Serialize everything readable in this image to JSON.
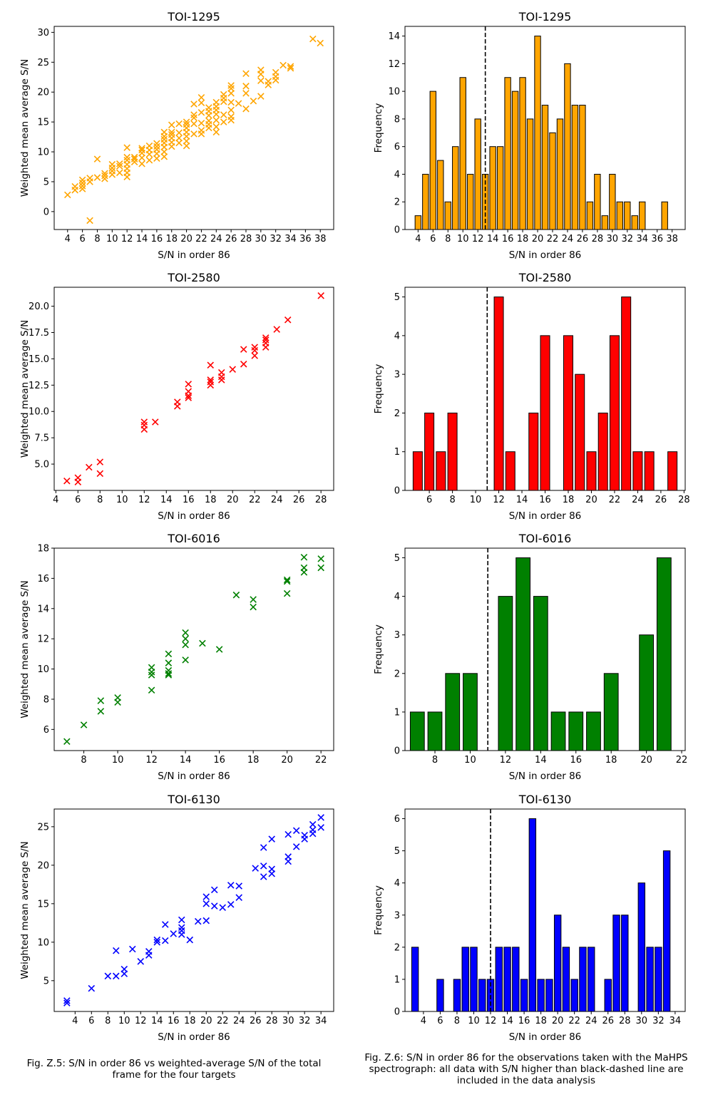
{
  "chart_data": [
    {
      "type": "scatter",
      "title": "TOI-1295",
      "xlabel": "S/N in order 86",
      "ylabel": "Weighted mean average S/N",
      "color": "#ffa500",
      "marker": "x",
      "xlim": [
        2.2,
        39.8
      ],
      "ylim": [
        -3,
        31
      ],
      "xticks": [
        4,
        6,
        8,
        10,
        12,
        14,
        16,
        18,
        20,
        22,
        24,
        26,
        28,
        30,
        32,
        34,
        36,
        38
      ],
      "yticks": [
        0,
        5,
        10,
        15,
        20,
        25,
        30
      ],
      "points": [
        [
          4,
          2.8
        ],
        [
          5,
          3.6
        ],
        [
          5,
          4.2
        ],
        [
          6,
          3.8
        ],
        [
          6,
          4.3
        ],
        [
          6,
          4.8
        ],
        [
          6,
          5.3
        ],
        [
          7,
          5.0
        ],
        [
          7,
          5.6
        ],
        [
          7,
          -1.5
        ],
        [
          8,
          5.7
        ],
        [
          8,
          8.8
        ],
        [
          9,
          5.5
        ],
        [
          9,
          6.0
        ],
        [
          9,
          6.4
        ],
        [
          10,
          6.2
        ],
        [
          10,
          6.8
        ],
        [
          10,
          7.3
        ],
        [
          10,
          7.9
        ],
        [
          11,
          6.5
        ],
        [
          11,
          7.6
        ],
        [
          11,
          8.0
        ],
        [
          12,
          5.8
        ],
        [
          12,
          6.5
        ],
        [
          12,
          7.2
        ],
        [
          12,
          7.9
        ],
        [
          12,
          8.6
        ],
        [
          12,
          9.1
        ],
        [
          12,
          10.7
        ],
        [
          13,
          8.3
        ],
        [
          13,
          8.8
        ],
        [
          13,
          9.1
        ],
        [
          14,
          8.0
        ],
        [
          14,
          9.0
        ],
        [
          14,
          9.8
        ],
        [
          14,
          10.3
        ],
        [
          14,
          10.6
        ],
        [
          15,
          8.6
        ],
        [
          15,
          9.6
        ],
        [
          15,
          10.3
        ],
        [
          15,
          11.0
        ],
        [
          16,
          8.9
        ],
        [
          16,
          9.7
        ],
        [
          16,
          10.4
        ],
        [
          16,
          10.9
        ],
        [
          16,
          11.4
        ],
        [
          17,
          9.2
        ],
        [
          17,
          10.0
        ],
        [
          17,
          10.8
        ],
        [
          17,
          11.5
        ],
        [
          17,
          12.1
        ],
        [
          17,
          12.6
        ],
        [
          17,
          13.3
        ],
        [
          18,
          10.9
        ],
        [
          18,
          11.6
        ],
        [
          18,
          12.3
        ],
        [
          18,
          12.9
        ],
        [
          18,
          13.3
        ],
        [
          18,
          14.5
        ],
        [
          19,
          11.5
        ],
        [
          19,
          12.3
        ],
        [
          19,
          13.2
        ],
        [
          19,
          14.7
        ],
        [
          20,
          11.0
        ],
        [
          20,
          11.8
        ],
        [
          20,
          12.6
        ],
        [
          20,
          13.3
        ],
        [
          20,
          14.0
        ],
        [
          20,
          14.6
        ],
        [
          20,
          15.0
        ],
        [
          21,
          13.0
        ],
        [
          21,
          14.7
        ],
        [
          21,
          15.7
        ],
        [
          21,
          16.2
        ],
        [
          21,
          18.0
        ],
        [
          22,
          13.0
        ],
        [
          22,
          13.6
        ],
        [
          22,
          14.8
        ],
        [
          22,
          16.6
        ],
        [
          22,
          18.2
        ],
        [
          22,
          19.1
        ],
        [
          23,
          14.0
        ],
        [
          23,
          14.6
        ],
        [
          23,
          15.2
        ],
        [
          23,
          16.1
        ],
        [
          23,
          16.8
        ],
        [
          23,
          17.4
        ],
        [
          24,
          13.3
        ],
        [
          24,
          14.2
        ],
        [
          24,
          15.3
        ],
        [
          24,
          16.3
        ],
        [
          24,
          17.0
        ],
        [
          24,
          17.6
        ],
        [
          24,
          18.3
        ],
        [
          25,
          15.0
        ],
        [
          25,
          16.2
        ],
        [
          25,
          18.4
        ],
        [
          25,
          19.0
        ],
        [
          25,
          19.6
        ],
        [
          26,
          15.3
        ],
        [
          26,
          15.9
        ],
        [
          26,
          17.0
        ],
        [
          26,
          18.3
        ],
        [
          26,
          19.8
        ],
        [
          26,
          20.6
        ],
        [
          26,
          21.1
        ],
        [
          27,
          18.1
        ],
        [
          28,
          17.2
        ],
        [
          28,
          19.8
        ],
        [
          28,
          21.0
        ],
        [
          28,
          23.1
        ],
        [
          29,
          18.5
        ],
        [
          30,
          19.3
        ],
        [
          30,
          21.9
        ],
        [
          30,
          23.0
        ],
        [
          30,
          23.7
        ],
        [
          31,
          21.2
        ],
        [
          31,
          21.8
        ],
        [
          32,
          22.0
        ],
        [
          32,
          22.6
        ],
        [
          32,
          23.3
        ],
        [
          33,
          24.5
        ],
        [
          34,
          24.0
        ],
        [
          34,
          24.3
        ],
        [
          37,
          28.9
        ],
        [
          38,
          28.2
        ]
      ]
    },
    {
      "type": "bar",
      "title": "TOI-1295",
      "xlabel": "S/N in order 86",
      "ylabel": "Frequency",
      "color": "#ffa500",
      "xlim": [
        2.25,
        39.75
      ],
      "ylim": [
        0,
        14.7
      ],
      "xticks": [
        4,
        6,
        8,
        10,
        12,
        14,
        16,
        18,
        20,
        22,
        24,
        26,
        28,
        30,
        32,
        34,
        36,
        38
      ],
      "yticks": [
        0,
        2,
        4,
        6,
        8,
        10,
        12,
        14
      ],
      "threshold": 13,
      "x": [
        4,
        5,
        6,
        7,
        8,
        9,
        10,
        11,
        12,
        13,
        14,
        15,
        16,
        17,
        18,
        19,
        20,
        21,
        22,
        23,
        24,
        25,
        26,
        27,
        28,
        29,
        30,
        31,
        32,
        33,
        34,
        37
      ],
      "values": [
        1,
        4,
        10,
        5,
        2,
        6,
        11,
        4,
        8,
        4,
        6,
        6,
        11,
        10,
        11,
        8,
        14,
        9,
        7,
        8,
        12,
        9,
        9,
        2,
        4,
        1,
        4,
        2,
        2,
        1,
        2,
        2
      ]
    },
    {
      "type": "scatter",
      "title": "TOI-2580",
      "xlabel": "S/N in order 86",
      "ylabel": "Weighted mean average S/N",
      "color": "#ff0000",
      "marker": "x",
      "xlim": [
        3.85,
        29.15
      ],
      "ylim": [
        2.5,
        21.8
      ],
      "xticks": [
        4,
        6,
        8,
        10,
        12,
        14,
        16,
        18,
        20,
        22,
        24,
        26,
        28
      ],
      "yticks": [
        5.0,
        7.5,
        10.0,
        12.5,
        15.0,
        17.5,
        20.0
      ],
      "points": [
        [
          5,
          3.4
        ],
        [
          6,
          3.3
        ],
        [
          6,
          3.7
        ],
        [
          7,
          4.7
        ],
        [
          8,
          4.1
        ],
        [
          8,
          5.2
        ],
        [
          12,
          8.3
        ],
        [
          12,
          8.7
        ],
        [
          12,
          9.0
        ],
        [
          13,
          9.0
        ],
        [
          15,
          10.5
        ],
        [
          15,
          10.9
        ],
        [
          16,
          11.3
        ],
        [
          16,
          11.5
        ],
        [
          16,
          11.9
        ],
        [
          16,
          12.6
        ],
        [
          18,
          12.5
        ],
        [
          18,
          12.8
        ],
        [
          18,
          13.0
        ],
        [
          18,
          14.4
        ],
        [
          19,
          13.0
        ],
        [
          19,
          13.3
        ],
        [
          19,
          13.7
        ],
        [
          20,
          14.0
        ],
        [
          21,
          14.5
        ],
        [
          21,
          15.9
        ],
        [
          22,
          15.3
        ],
        [
          22,
          15.8
        ],
        [
          22,
          16.1
        ],
        [
          23,
          16.1
        ],
        [
          23,
          16.5
        ],
        [
          23,
          16.8
        ],
        [
          23,
          17.0
        ],
        [
          24,
          17.8
        ],
        [
          25,
          18.7
        ],
        [
          28,
          21.0
        ]
      ]
    },
    {
      "type": "bar",
      "title": "TOI-2580",
      "xlabel": "S/N in order 86",
      "ylabel": "Frequency",
      "color": "#ff0000",
      "xlim": [
        3.9,
        28.1
      ],
      "ylim": [
        0,
        5.25
      ],
      "xticks": [
        6,
        8,
        10,
        12,
        14,
        16,
        18,
        20,
        22,
        24,
        26,
        28
      ],
      "yticks": [
        0,
        1,
        2,
        3,
        4,
        5
      ],
      "threshold": 11,
      "x": [
        5,
        6,
        7,
        8,
        12,
        13,
        15,
        16,
        18,
        19,
        20,
        21,
        22,
        23,
        24,
        25,
        27
      ],
      "values": [
        1,
        2,
        1,
        2,
        5,
        1,
        2,
        4,
        4,
        3,
        1,
        2,
        4,
        5,
        1,
        1,
        1
      ]
    },
    {
      "type": "scatter",
      "title": "TOI-6016",
      "xlabel": "S/N in order 86",
      "ylabel": "Weighted mean average S/N",
      "color": "#008000",
      "marker": "x",
      "xlim": [
        6.25,
        22.75
      ],
      "ylim": [
        4.6,
        18.0
      ],
      "xticks": [
        8,
        10,
        12,
        14,
        16,
        18,
        20,
        22
      ],
      "yticks": [
        6,
        8,
        10,
        12,
        14,
        16,
        18
      ],
      "points": [
        [
          7,
          5.2
        ],
        [
          8,
          6.3
        ],
        [
          9,
          7.2
        ],
        [
          9,
          7.9
        ],
        [
          10,
          7.8
        ],
        [
          10,
          8.1
        ],
        [
          12,
          8.6
        ],
        [
          12,
          9.6
        ],
        [
          12,
          9.8
        ],
        [
          12,
          10.1
        ],
        [
          13,
          9.6
        ],
        [
          13,
          9.7
        ],
        [
          13,
          9.9
        ],
        [
          13,
          10.4
        ],
        [
          13,
          11.0
        ],
        [
          14,
          10.6
        ],
        [
          14,
          11.6
        ],
        [
          14,
          12.0
        ],
        [
          14,
          12.4
        ],
        [
          15,
          11.7
        ],
        [
          16,
          11.3
        ],
        [
          17,
          14.9
        ],
        [
          18,
          14.1
        ],
        [
          18,
          14.6
        ],
        [
          20,
          15.0
        ],
        [
          20,
          15.8
        ],
        [
          20,
          15.9
        ],
        [
          21,
          16.4
        ],
        [
          21,
          16.7
        ],
        [
          21,
          17.4
        ],
        [
          22,
          16.7
        ],
        [
          22,
          17.3
        ]
      ]
    },
    {
      "type": "bar",
      "title": "TOI-6016",
      "xlabel": "S/N in order 86",
      "ylabel": "Frequency",
      "color": "#008000",
      "xlim": [
        6.3,
        22.2
      ],
      "ylim": [
        0,
        5.25
      ],
      "xticks": [
        8,
        10,
        12,
        14,
        16,
        18,
        20,
        22
      ],
      "yticks": [
        0,
        1,
        2,
        3,
        4,
        5
      ],
      "threshold": 11,
      "x": [
        7,
        8,
        9,
        10,
        12,
        13,
        14,
        15,
        16,
        17,
        18,
        20,
        21
      ],
      "values": [
        1,
        1,
        2,
        2,
        4,
        5,
        4,
        1,
        1,
        1,
        2,
        3,
        5
      ]
    },
    {
      "type": "scatter",
      "title": "TOI-6130",
      "xlabel": "S/N in order 86",
      "ylabel": "Weighted mean average S/N",
      "color": "#0000ff",
      "marker": "x",
      "xlim": [
        1.45,
        35.55
      ],
      "ylim": [
        1.0,
        27.3
      ],
      "xticks": [
        4,
        6,
        8,
        10,
        12,
        14,
        16,
        18,
        20,
        22,
        24,
        26,
        28,
        30,
        32,
        34
      ],
      "yticks": [
        5,
        10,
        15,
        20,
        25
      ],
      "points": [
        [
          3,
          2.1
        ],
        [
          3,
          2.4
        ],
        [
          6,
          4.0
        ],
        [
          8,
          5.6
        ],
        [
          9,
          5.6
        ],
        [
          9,
          8.9
        ],
        [
          10,
          5.9
        ],
        [
          10,
          6.5
        ],
        [
          11,
          9.1
        ],
        [
          12,
          7.5
        ],
        [
          13,
          8.3
        ],
        [
          13,
          8.8
        ],
        [
          14,
          10.0
        ],
        [
          14,
          10.3
        ],
        [
          15,
          10.2
        ],
        [
          15,
          12.3
        ],
        [
          16,
          11.1
        ],
        [
          17,
          11.0
        ],
        [
          17,
          11.5
        ],
        [
          17,
          11.9
        ],
        [
          17,
          12.9
        ],
        [
          18,
          10.3
        ],
        [
          19,
          12.7
        ],
        [
          20,
          12.8
        ],
        [
          20,
          15.0
        ],
        [
          20,
          15.9
        ],
        [
          21,
          14.7
        ],
        [
          21,
          16.8
        ],
        [
          22,
          14.5
        ],
        [
          23,
          14.9
        ],
        [
          23,
          17.4
        ],
        [
          24,
          15.8
        ],
        [
          24,
          17.3
        ],
        [
          26,
          19.6
        ],
        [
          27,
          18.5
        ],
        [
          27,
          19.9
        ],
        [
          27,
          22.3
        ],
        [
          28,
          18.9
        ],
        [
          28,
          19.5
        ],
        [
          28,
          23.4
        ],
        [
          30,
          20.5
        ],
        [
          30,
          21.1
        ],
        [
          30,
          24.0
        ],
        [
          31,
          22.4
        ],
        [
          31,
          24.5
        ],
        [
          32,
          23.4
        ],
        [
          32,
          23.9
        ],
        [
          33,
          24.1
        ],
        [
          33,
          24.6
        ],
        [
          33,
          25.3
        ],
        [
          34,
          24.9
        ],
        [
          34,
          26.2
        ]
      ]
    },
    {
      "type": "bar",
      "title": "TOI-6130",
      "xlabel": "S/N in order 86",
      "ylabel": "Frequency",
      "color": "#0000ff",
      "xlim": [
        1.8,
        35.2
      ],
      "ylim": [
        0,
        6.3
      ],
      "xticks": [
        4,
        6,
        8,
        10,
        12,
        14,
        16,
        18,
        20,
        22,
        24,
        26,
        28,
        30,
        32,
        34
      ],
      "yticks": [
        0,
        1,
        2,
        3,
        4,
        5,
        6
      ],
      "threshold": 12,
      "x": [
        3,
        6,
        8,
        9,
        10,
        11,
        12,
        13,
        14,
        15,
        16,
        17,
        18,
        19,
        20,
        21,
        22,
        23,
        24,
        26,
        27,
        28,
        30,
        31,
        32,
        33
      ],
      "values": [
        2,
        1,
        1,
        2,
        2,
        1,
        1,
        2,
        2,
        2,
        1,
        6,
        1,
        1,
        3,
        2,
        1,
        2,
        2,
        1,
        3,
        3,
        4,
        2,
        2,
        5
      ]
    }
  ],
  "captions": {
    "left": "Fig. Z.5: S/N in order 86 vs weighted-average S/N of the total frame for the four targets",
    "right": "Fig. Z.6: S/N in order 86 for the observations taken with the MaHPS spectrograph: all data with S/N higher than black-dashed line are included in the data analysis"
  }
}
